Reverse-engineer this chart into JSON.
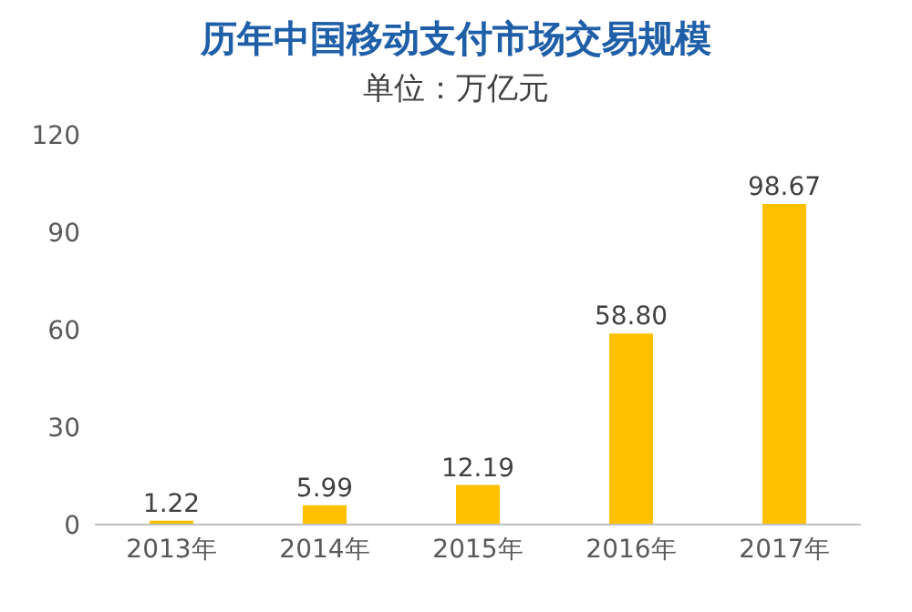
{
  "chart_data": {
    "type": "bar",
    "title": "历年中国移动支付市场交易规模",
    "subtitle": "单位：万亿元",
    "categories": [
      "2013年",
      "2014年",
      "2015年",
      "2016年",
      "2017年"
    ],
    "values": [
      1.22,
      5.99,
      12.19,
      58.8,
      98.67
    ],
    "value_labels": [
      "1.22",
      "5.99",
      "12.19",
      "58.80",
      "98.67"
    ],
    "color": "#ffc000",
    "ylim": [
      0,
      120
    ],
    "yticks": [
      0,
      30,
      60,
      90,
      120
    ],
    "grid": false,
    "legend": false
  }
}
